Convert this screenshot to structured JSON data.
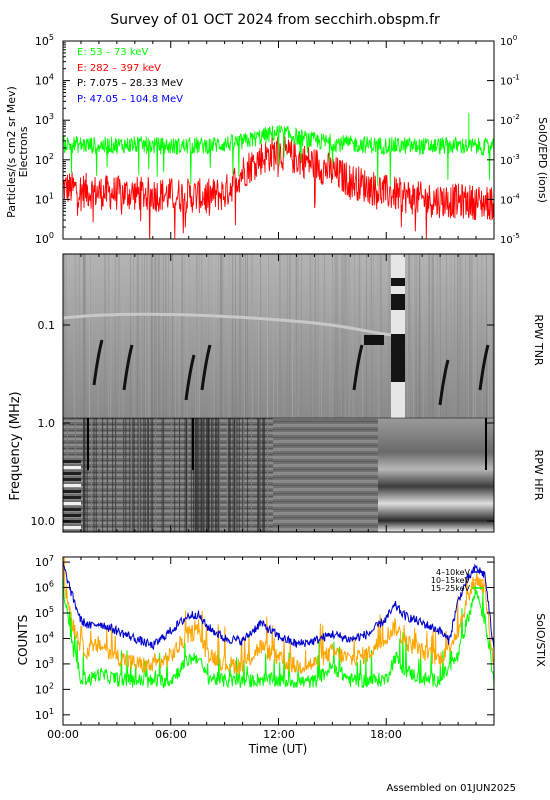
{
  "title": "Survey of 01 OCT 2024 from secchirh.obspm.fr",
  "footer": "Assembled on 01JUN2025",
  "x_axis": {
    "ticks": [
      "00:00",
      "06:00",
      "12:00",
      "18:00"
    ],
    "label": "Time (UT)"
  },
  "colors": {
    "green": "#00ff00",
    "red": "#ff0000",
    "black": "#000000",
    "blue": "#0000ff",
    "orange": "#ffa500",
    "stix_blue": "#0000cc"
  },
  "chart_data": [
    {
      "type": "line",
      "panel": "SolO/EPD",
      "y_left_label_line1": "Particles/(s cm2 sr Mev)",
      "y_left_label_line2": "Electrons",
      "y_right_label": "SolO/EPD (ions)",
      "y_left_ticks": [
        "10^0",
        "10^1",
        "10^2",
        "10^3",
        "10^4",
        "10^5"
      ],
      "y_right_ticks": [
        "10^-5",
        "10^-4",
        "10^-3",
        "10^-2",
        "10^-1",
        "10^0"
      ],
      "ylim_log10": [
        0,
        5
      ],
      "xlim_hours": [
        0,
        24
      ],
      "legend": [
        {
          "label": "E: 53 – 73 keV",
          "color": "#00ff00"
        },
        {
          "label": "E: 282 – 397 keV",
          "color": "#ff0000"
        },
        {
          "label": "P: 7.075 – 28.33 MeV",
          "color": "#000000"
        },
        {
          "label": "P: 47.05 – 104.8 MeV",
          "color": "#0000ff"
        }
      ],
      "series": [
        {
          "name": "E: 53 – 73 keV",
          "color": "#00ff00",
          "x": [
            0,
            2,
            4,
            6,
            8,
            10,
            11,
            12,
            13,
            14,
            16,
            18,
            20,
            22,
            23,
            24
          ],
          "y": [
            250,
            230,
            240,
            220,
            230,
            280,
            380,
            500,
            380,
            300,
            250,
            230,
            220,
            230,
            220,
            200
          ]
        },
        {
          "name": "E: 282 – 397 keV",
          "color": "#ff0000",
          "x": [
            0,
            2,
            4,
            6,
            8,
            9,
            10,
            11,
            12,
            13,
            14,
            15,
            16,
            18,
            20,
            22,
            24
          ],
          "y": [
            20,
            15,
            14,
            13,
            12,
            14,
            50,
            110,
            160,
            110,
            80,
            50,
            30,
            15,
            10,
            9,
            8
          ]
        }
      ]
    },
    {
      "type": "heatmap",
      "panel": "RPW TNR / RPW HFR",
      "y_label": "Frequency (MHz)",
      "y_ticks": [
        "0.1",
        "1.0",
        "10.0"
      ],
      "y_right_labels": [
        "RPW TNR",
        "RPW HFR"
      ],
      "xlim_hours": [
        0,
        24
      ]
    },
    {
      "type": "line",
      "panel": "SolO/STIX",
      "y_left_label": "COUNTS",
      "y_right_label": "SolO/STIX",
      "y_ticks": [
        "10^1",
        "10^2",
        "10^3",
        "10^4",
        "10^5",
        "10^6",
        "10^7"
      ],
      "ylim_log10": [
        0.6,
        7.2
      ],
      "xlim_hours": [
        0,
        24
      ],
      "legend": [
        {
          "label": "4–10keV",
          "color": "#0000cc"
        },
        {
          "label": "10–15keV",
          "color": "#ffa500"
        },
        {
          "label": "15–25keV",
          "color": "#00ff00"
        }
      ],
      "series": [
        {
          "name": "4–10keV",
          "color": "#0000cc",
          "x": [
            0,
            0.5,
            1,
            1.5,
            2,
            3,
            4,
            5,
            6,
            7,
            7.5,
            8,
            9,
            10,
            11,
            12,
            13,
            14,
            15,
            16,
            17,
            18,
            18.5,
            19,
            20,
            21,
            21.5,
            22,
            22.5,
            23,
            23.5,
            24
          ],
          "y": [
            8000000,
            500000,
            50000,
            30000,
            40000,
            20000,
            10000,
            5000,
            20000,
            80000,
            90000,
            30000,
            10000,
            8000,
            40000,
            12000,
            6000,
            8000,
            15000,
            9000,
            15000,
            60000,
            200000,
            80000,
            40000,
            20000,
            8000,
            300000,
            2000000,
            6000000,
            3000000,
            3000
          ]
        },
        {
          "name": "10–15keV",
          "color": "#ffa500",
          "x": [
            0,
            0.5,
            1,
            1.5,
            2,
            3,
            4,
            5,
            6,
            7,
            7.5,
            8,
            9,
            10,
            11,
            12,
            13,
            14,
            15,
            16,
            17,
            18,
            18.5,
            19,
            20,
            21,
            22,
            22.5,
            23,
            23.5,
            24
          ],
          "y": [
            3000000,
            50000,
            5000,
            3000,
            6000,
            2000,
            1000,
            800,
            2000,
            15000,
            20000,
            3000,
            1000,
            800,
            5000,
            1500,
            800,
            1000,
            3000,
            1500,
            2500,
            12000,
            30000,
            8000,
            3000,
            1500,
            20000,
            300000,
            2500000,
            800000,
            500
          ]
        },
        {
          "name": "15–25keV",
          "color": "#00ff00",
          "x": [
            0,
            0.5,
            1,
            1.5,
            2,
            3,
            4,
            5,
            6,
            7,
            7.5,
            8,
            9,
            10,
            11,
            12,
            13,
            14,
            15,
            16,
            17,
            18,
            18.5,
            19,
            20,
            21,
            22,
            22.5,
            23,
            23.5,
            24
          ],
          "y": [
            1000000,
            5000,
            300,
            250,
            400,
            250,
            220,
            200,
            230,
            1500,
            2000,
            300,
            220,
            200,
            250,
            220,
            200,
            200,
            800,
            230,
            220,
            250,
            2000,
            600,
            250,
            230,
            2000,
            50000,
            800000,
            50000,
            200
          ]
        }
      ]
    }
  ]
}
